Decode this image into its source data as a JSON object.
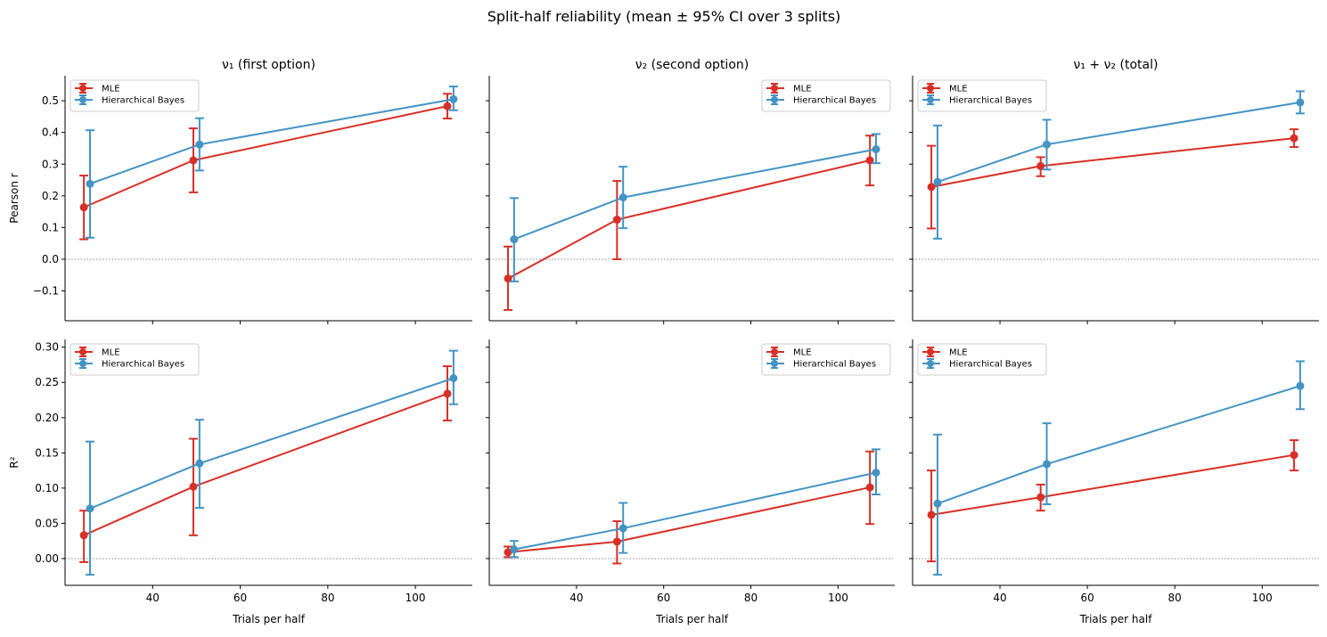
{
  "chart_data": {
    "type": "line",
    "title": "Split-half reliability (mean ± 95% CI over 3 splits)",
    "colors": {
      "MLE": "#d73027",
      "Hierarchical Bayes": "#4393c3"
    },
    "xlabel": "Trials per half",
    "xlim": [
      20,
      113
    ],
    "xticks": [
      40,
      60,
      80,
      100
    ],
    "rows": [
      {
        "ylabel": "Pearson r",
        "ylim": [
          -0.194,
          0.579
        ],
        "yticks": [
          -0.1,
          0.0,
          0.1,
          0.2,
          0.3,
          0.4,
          0.5
        ],
        "ytick_decimals": 1
      },
      {
        "ylabel": "R²",
        "ylim": [
          -0.038,
          0.311
        ],
        "yticks": [
          0.0,
          0.05,
          0.1,
          0.15,
          0.2,
          0.25,
          0.3
        ],
        "ytick_decimals": 2
      }
    ],
    "panels": [
      {
        "title": "ν₁ (first option)",
        "row": 0,
        "col": 0,
        "legend": "upper-left",
        "series": [
          {
            "name": "MLE",
            "x": [
              24.3,
              49.3,
              107.3
            ],
            "y": [
              0.164,
              0.312,
              0.483
            ],
            "lo": [
              0.063,
              0.211,
              0.444
            ],
            "hi": [
              0.264,
              0.413,
              0.522
            ]
          },
          {
            "name": "Hierarchical Bayes",
            "x": [
              25.7,
              50.7,
              108.7
            ],
            "y": [
              0.238,
              0.362,
              0.505
            ],
            "lo": [
              0.068,
              0.28,
              0.47
            ],
            "hi": [
              0.407,
              0.445,
              0.545
            ]
          }
        ]
      },
      {
        "title": "ν₂ (second option)",
        "row": 0,
        "col": 1,
        "legend": "upper-right",
        "series": [
          {
            "name": "MLE",
            "x": [
              24.3,
              49.3,
              107.3
            ],
            "y": [
              -0.061,
              0.125,
              0.312
            ],
            "lo": [
              -0.16,
              0.0,
              0.233
            ],
            "hi": [
              0.04,
              0.247,
              0.39
            ]
          },
          {
            "name": "Hierarchical Bayes",
            "x": [
              25.7,
              50.7,
              108.7
            ],
            "y": [
              0.063,
              0.195,
              0.347
            ],
            "lo": [
              -0.07,
              0.098,
              0.303
            ],
            "hi": [
              0.193,
              0.292,
              0.395
            ]
          }
        ]
      },
      {
        "title": "ν₁ + ν₂ (total)",
        "row": 0,
        "col": 2,
        "legend": "upper-left",
        "series": [
          {
            "name": "MLE",
            "x": [
              24.3,
              49.3,
              107.3
            ],
            "y": [
              0.228,
              0.294,
              0.382
            ],
            "lo": [
              0.097,
              0.262,
              0.354
            ],
            "hi": [
              0.358,
              0.322,
              0.41
            ]
          },
          {
            "name": "Hierarchical Bayes",
            "x": [
              25.7,
              50.7,
              108.7
            ],
            "y": [
              0.244,
              0.362,
              0.495
            ],
            "lo": [
              0.065,
              0.283,
              0.46
            ],
            "hi": [
              0.422,
              0.44,
              0.53
            ]
          }
        ]
      },
      {
        "title": "",
        "row": 1,
        "col": 0,
        "legend": "upper-left",
        "series": [
          {
            "name": "MLE",
            "x": [
              24.3,
              49.3,
              107.3
            ],
            "y": [
              0.033,
              0.102,
              0.234
            ],
            "lo": [
              -0.005,
              0.033,
              0.196
            ],
            "hi": [
              0.068,
              0.17,
              0.273
            ]
          },
          {
            "name": "Hierarchical Bayes",
            "x": [
              25.7,
              50.7,
              108.7
            ],
            "y": [
              0.071,
              0.135,
              0.256
            ],
            "lo": [
              -0.023,
              0.072,
              0.219
            ],
            "hi": [
              0.166,
              0.197,
              0.295
            ]
          }
        ]
      },
      {
        "title": "",
        "row": 1,
        "col": 1,
        "legend": "upper-right",
        "series": [
          {
            "name": "MLE",
            "x": [
              24.3,
              49.3,
              107.3
            ],
            "y": [
              0.009,
              0.024,
              0.101
            ],
            "lo": [
              0.002,
              -0.007,
              0.049
            ],
            "hi": [
              0.017,
              0.053,
              0.152
            ]
          },
          {
            "name": "Hierarchical Bayes",
            "x": [
              25.7,
              50.7,
              108.7
            ],
            "y": [
              0.013,
              0.043,
              0.122
            ],
            "lo": [
              0.002,
              0.008,
              0.091
            ],
            "hi": [
              0.025,
              0.079,
              0.155
            ]
          }
        ]
      },
      {
        "title": "",
        "row": 1,
        "col": 2,
        "legend": "upper-left",
        "series": [
          {
            "name": "MLE",
            "x": [
              24.3,
              49.3,
              107.3
            ],
            "y": [
              0.062,
              0.087,
              0.147
            ],
            "lo": [
              -0.004,
              0.068,
              0.125
            ],
            "hi": [
              0.125,
              0.105,
              0.168
            ]
          },
          {
            "name": "Hierarchical Bayes",
            "x": [
              25.7,
              50.7,
              108.7
            ],
            "y": [
              0.078,
              0.134,
              0.245
            ],
            "lo": [
              -0.023,
              0.077,
              0.212
            ],
            "hi": [
              0.176,
              0.192,
              0.28
            ]
          }
        ]
      }
    ]
  }
}
